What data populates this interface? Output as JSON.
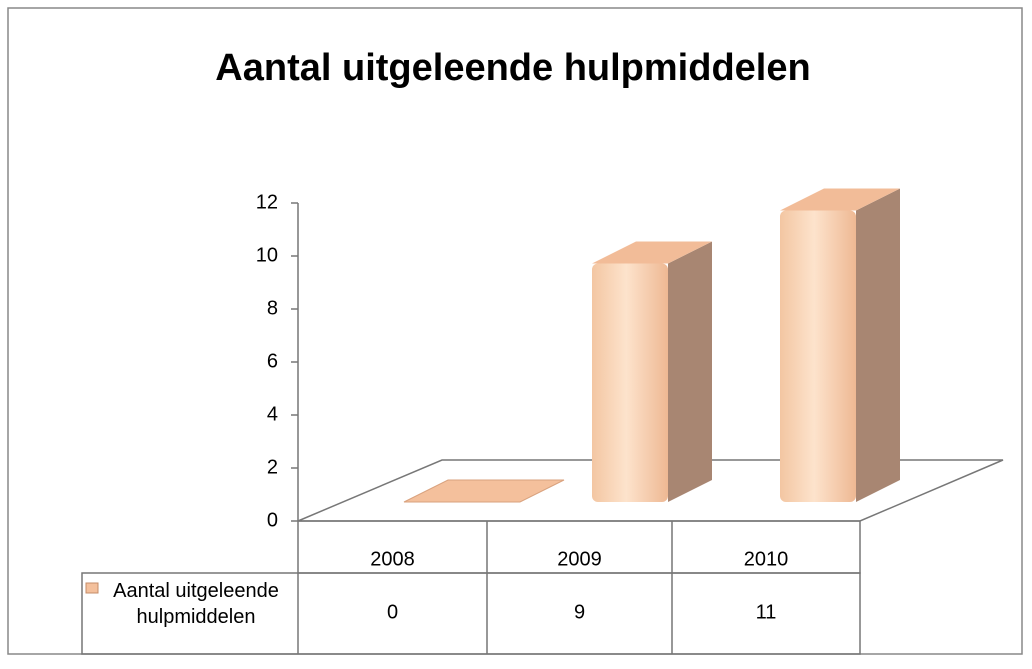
{
  "chart_data": {
    "type": "bar3d",
    "title": "Aantal uitgeleende hulpmiddelen",
    "categories": [
      "2008",
      "2009",
      "2010"
    ],
    "series": [
      {
        "name": "Aantal uitgeleende hulpmiddelen",
        "color": "#f4c09c",
        "values": [
          0,
          9,
          11
        ]
      }
    ],
    "ylim": [
      0,
      12
    ],
    "yticks": [
      0,
      2,
      4,
      6,
      8,
      10,
      12
    ],
    "data_table": true
  }
}
